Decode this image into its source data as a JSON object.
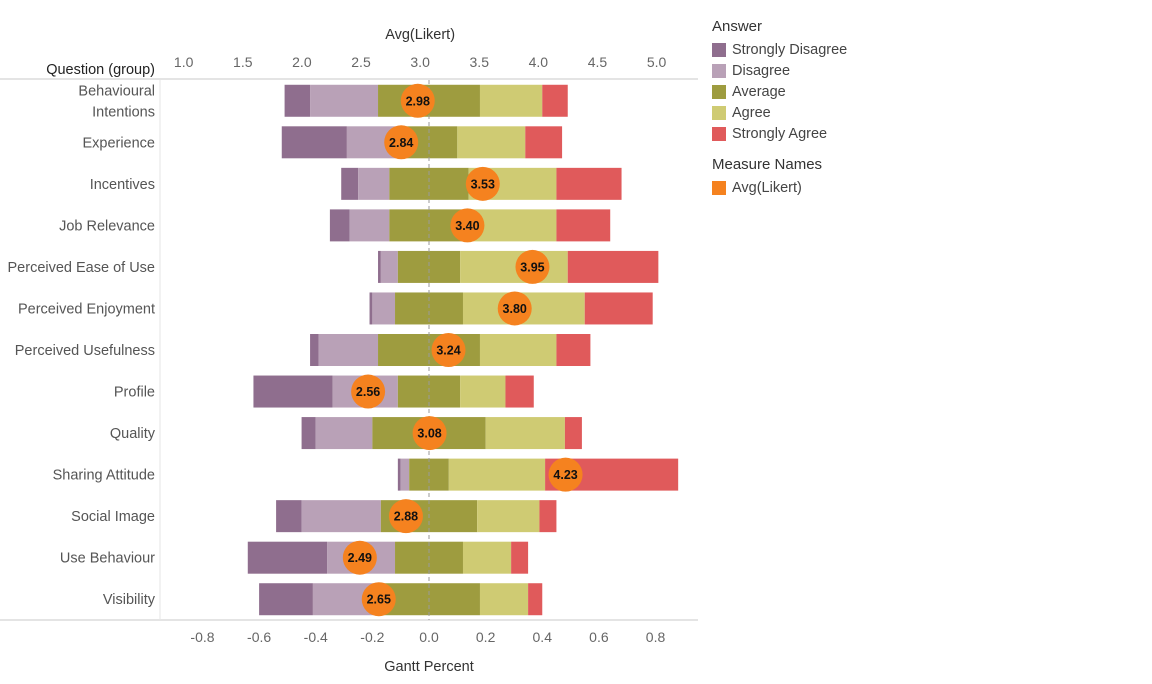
{
  "chart_data": {
    "type": "bar",
    "subtype": "diverging-stacked-gantt-with-dot-overlay",
    "top_axis_title": "Avg(Likert)",
    "bottom_axis_title": "Gantt Percent",
    "row_header": "Question (group)",
    "top_axis": {
      "ticks": [
        "1.0",
        "1.5",
        "2.0",
        "2.5",
        "3.0",
        "3.5",
        "4.0",
        "4.5",
        "5.0"
      ],
      "range": [
        0.8,
        5.35
      ]
    },
    "bottom_axis": {
      "ticks": [
        "-0.8",
        "-0.6",
        "-0.4",
        "-0.2",
        "0.0",
        "0.2",
        "0.4",
        "0.6",
        "0.8"
      ],
      "range": [
        -0.95,
        0.95
      ]
    },
    "categories": [
      "Behavioural Intentions",
      "Experience",
      "Incentives",
      "Job Relevance",
      "Perceived Ease of Use",
      "Perceived Enjoyment",
      "Perceived Usefulness",
      "Profile",
      "Quality",
      "Sharing Attitude",
      "Social Image",
      "Use Behaviour",
      "Visibility"
    ],
    "category_lines": [
      [
        "Behavioural",
        "Intentions"
      ],
      [
        "Experience"
      ],
      [
        "Incentives"
      ],
      [
        "Job Relevance"
      ],
      [
        "Perceived Ease of Use"
      ],
      [
        "Perceived Enjoyment"
      ],
      [
        "Perceived Usefulness"
      ],
      [
        "Profile"
      ],
      [
        "Quality"
      ],
      [
        "Sharing Attitude"
      ],
      [
        "Social Image"
      ],
      [
        "Use Behaviour"
      ],
      [
        "Visibility"
      ]
    ],
    "segment_edges": [
      [
        -0.51,
        -0.42,
        -0.18,
        0.18,
        0.4,
        0.49
      ],
      [
        -0.52,
        -0.29,
        -0.1,
        0.1,
        0.34,
        0.47
      ],
      [
        -0.31,
        -0.25,
        -0.14,
        0.14,
        0.45,
        0.68
      ],
      [
        -0.35,
        -0.28,
        -0.14,
        0.14,
        0.45,
        0.64
      ],
      [
        -0.18,
        -0.17,
        -0.11,
        0.11,
        0.49,
        0.81
      ],
      [
        -0.21,
        -0.2,
        -0.12,
        0.12,
        0.55,
        0.79
      ],
      [
        -0.42,
        -0.39,
        -0.18,
        0.18,
        0.45,
        0.57
      ],
      [
        -0.62,
        -0.34,
        -0.11,
        0.11,
        0.27,
        0.37
      ],
      [
        -0.45,
        -0.4,
        -0.2,
        0.2,
        0.48,
        0.54
      ],
      [
        -0.11,
        -0.1,
        -0.07,
        0.07,
        0.41,
        0.88
      ],
      [
        -0.54,
        -0.45,
        -0.17,
        0.17,
        0.39,
        0.45
      ],
      [
        -0.64,
        -0.36,
        -0.12,
        0.12,
        0.29,
        0.35
      ],
      [
        -0.6,
        -0.41,
        -0.18,
        0.18,
        0.35,
        0.4
      ]
    ],
    "series": [
      {
        "name": "Strongly Disagree",
        "color": "#8f6e8e"
      },
      {
        "name": "Disagree",
        "color": "#b9a1b7"
      },
      {
        "name": "Average",
        "color": "#9e9c3f"
      },
      {
        "name": "Agree",
        "color": "#cfcb73"
      },
      {
        "name": "Strongly Agree",
        "color": "#e05a5b"
      }
    ],
    "avg_likert": {
      "name": "Avg(Likert)",
      "color": "#f5821f",
      "values": [
        2.98,
        2.84,
        3.53,
        3.4,
        3.95,
        3.8,
        3.24,
        2.56,
        3.08,
        4.23,
        2.88,
        2.49,
        2.65
      ],
      "labels": [
        "2.98",
        "2.84",
        "3.53",
        "3.40",
        "3.95",
        "3.80",
        "3.24",
        "2.56",
        "3.08",
        "4.23",
        "2.88",
        "2.49",
        "2.65"
      ]
    },
    "legend": {
      "title": "Answer",
      "items": [
        "Strongly Disagree",
        "Disagree",
        "Average",
        "Agree",
        "Strongly Agree"
      ],
      "measure_title": "Measure Names",
      "measure_items": [
        "Avg(Likert)"
      ]
    },
    "grid": false
  }
}
